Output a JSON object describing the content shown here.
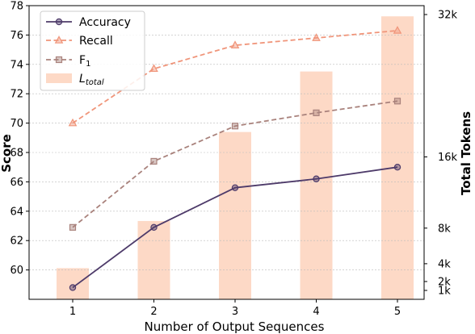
{
  "chart_data": {
    "type": "bar",
    "xlabel": "Number of Output Sequences",
    "ylabel_left": "Score",
    "ylabel_right": "Total Tokens",
    "categories": [
      "1",
      "2",
      "3",
      "4",
      "5"
    ],
    "left_axis": {
      "ylim": [
        58,
        78
      ],
      "ticks": [
        "60",
        "62",
        "64",
        "66",
        "68",
        "70",
        "72",
        "74",
        "76",
        "78"
      ]
    },
    "right_axis": {
      "ylim": [
        0,
        33000
      ],
      "ticks": [
        "1k",
        "2k",
        "4k",
        "8k",
        "16k",
        "32k"
      ]
    },
    "grid": true,
    "legend_position": "top-left",
    "bars": {
      "name": "L_total",
      "color": "#fdd9c6",
      "values": [
        3500,
        8800,
        18800,
        25600,
        31800
      ]
    },
    "series": [
      {
        "name": "Accuracy",
        "color": "#4e3b6a",
        "style": "solid",
        "marker": "circle",
        "values": [
          58.8,
          62.9,
          65.6,
          66.2,
          67.0
        ]
      },
      {
        "name": "Recall",
        "color": "#f0957a",
        "style": "dashed",
        "marker": "triangle",
        "values": [
          70.0,
          73.7,
          75.3,
          75.8,
          76.3
        ]
      },
      {
        "name": "F1",
        "color": "#a9827c",
        "style": "dashed",
        "marker": "square",
        "values": [
          62.9,
          67.4,
          69.8,
          70.7,
          71.5
        ]
      }
    ]
  }
}
